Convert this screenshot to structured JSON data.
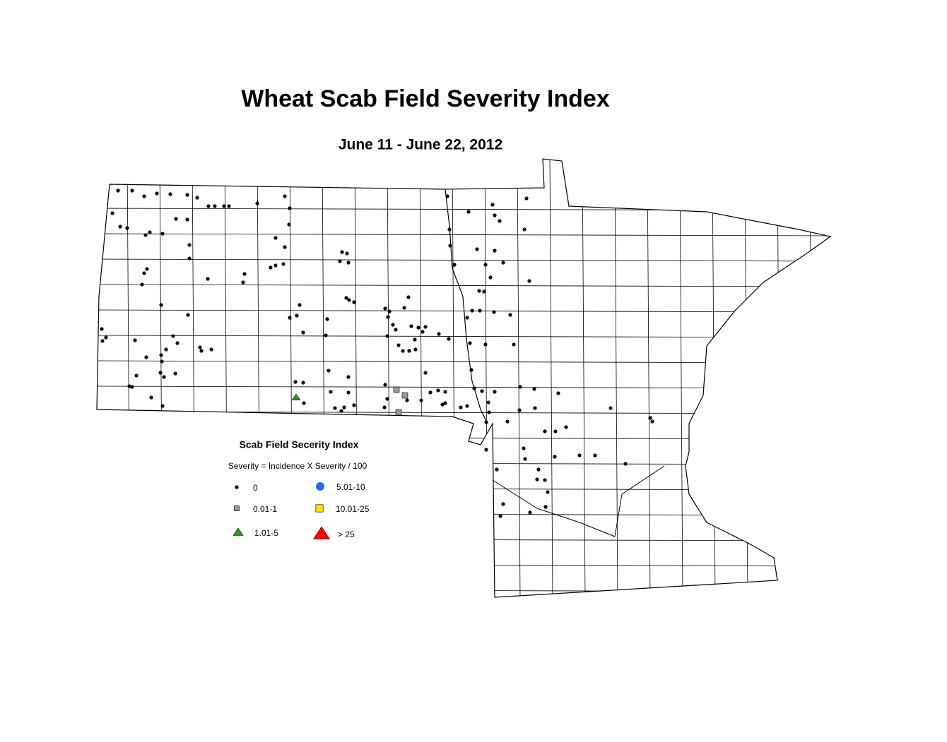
{
  "title": "Wheat Scab Field Severity Index",
  "subtitle": "June 11 - June 22, 2012",
  "legend": {
    "title": "Scab Field Secerity Index",
    "formula": "Severity = Incidence X Severity / 100",
    "items": [
      {
        "label": "0",
        "symbol": "dot",
        "color": "#000000"
      },
      {
        "label": "0.01-1",
        "symbol": "square",
        "color": "#999999"
      },
      {
        "label": "1.01-5",
        "symbol": "triangle",
        "color": "#2e9e1a"
      },
      {
        "label": "5.01-10",
        "symbol": "circle",
        "color": "#1e6fe8"
      },
      {
        "label": "10.01-25",
        "symbol": "square",
        "color": "#f0e600"
      },
      {
        "label": "> 25",
        "symbol": "triangle",
        "color": "#ff0000"
      }
    ]
  }
}
